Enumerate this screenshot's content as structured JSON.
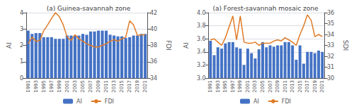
{
  "chart_data": [
    {
      "type": "bar",
      "title": "(a) Guinea-savannah zone",
      "y_label": "AI",
      "y2_label": "FDI",
      "categories": [
        1991,
        null,
        1993,
        null,
        1995,
        null,
        1997,
        null,
        1999,
        null,
        2001,
        null,
        2003,
        null,
        2005,
        null,
        2007,
        null,
        2009,
        null,
        2011,
        null,
        2013,
        null,
        2015,
        null,
        2017,
        null,
        2019,
        null,
        2021
      ],
      "series": [
        {
          "name": "AI",
          "type": "bar",
          "color": "#4472C4",
          "values": [
            2.9,
            2.7,
            2.75,
            2.75,
            2.5,
            2.5,
            2.5,
            2.4,
            2.4,
            2.4,
            2.6,
            2.6,
            2.6,
            2.6,
            2.7,
            2.65,
            2.85,
            2.85,
            2.9,
            2.9,
            2.9,
            2.65,
            2.6,
            2.55,
            2.55,
            2.45,
            2.5,
            2.6,
            2.6,
            2.7,
            2.7
          ]
        },
        {
          "name": "FDI",
          "type": "line",
          "color": "#E07B27",
          "axis": "y2",
          "values": [
            38.2,
            39.0,
            38.5,
            38.6,
            39.8,
            40.5,
            41.3,
            42.0,
            41.5,
            40.5,
            39.0,
            38.6,
            39.3,
            38.8,
            38.5,
            38.2,
            38.0,
            37.8,
            37.8,
            38.0,
            38.2,
            38.5,
            38.7,
            38.5,
            38.8,
            39.0,
            41.0,
            40.5,
            39.2,
            39.3,
            39.3
          ]
        }
      ],
      "ylim": [
        0,
        4
      ],
      "yticks": [
        0,
        1,
        2,
        3,
        4
      ],
      "y2lim": [
        34,
        42
      ],
      "y2ticks": [
        34,
        36,
        38,
        40,
        42
      ],
      "grid": true,
      "legend": "bottom"
    },
    {
      "type": "bar",
      "title": "(a) Forest-savannah mosaic zone",
      "y_label": "AI",
      "y2_label": "SDI",
      "categories": [
        1991,
        null,
        1993,
        null,
        1995,
        null,
        1997,
        null,
        1999,
        null,
        2001,
        null,
        2003,
        null,
        2005,
        null,
        2007,
        null,
        2009,
        null,
        2011,
        null,
        2013,
        null,
        2015,
        null,
        2017,
        null,
        2019,
        null,
        2021
      ],
      "series": [
        {
          "name": "AI",
          "type": "bar",
          "color": "#4472C4",
          "values": [
            3.57,
            3.35,
            3.47,
            3.45,
            3.53,
            3.55,
            3.55,
            3.47,
            3.45,
            3.2,
            3.45,
            3.38,
            3.3,
            3.44,
            3.55,
            3.47,
            3.5,
            3.48,
            3.5,
            3.5,
            3.55,
            3.55,
            3.5,
            3.28,
            3.5,
            3.22,
            3.4,
            3.4,
            3.38,
            3.42,
            3.4
          ]
        },
        {
          "name": "FDI",
          "type": "line",
          "color": "#E07B27",
          "axis": "y2",
          "values": [
            33.5,
            33.6,
            33.3,
            33.0,
            33.7,
            34.7,
            35.7,
            33.5,
            35.7,
            33.3,
            33.2,
            33.2,
            33.3,
            33.0,
            33.2,
            33.2,
            33.2,
            33.4,
            33.5,
            33.4,
            33.7,
            33.5,
            33.3,
            33.0,
            34.0,
            34.8,
            35.8,
            35.3,
            33.8,
            34.0,
            33.8
          ]
        }
      ],
      "ylim": [
        3.0,
        4.0
      ],
      "yticks": [
        {
          "value": 3.0,
          "label": "3.0"
        },
        3.2,
        3.4,
        3.6,
        3.8,
        {
          "value": 4.0,
          "label": "4.0"
        }
      ],
      "y2lim": [
        30,
        36
      ],
      "y2ticks": [
        30,
        31,
        32,
        33,
        34,
        35,
        36
      ],
      "grid": true,
      "legend": "bottom"
    }
  ]
}
